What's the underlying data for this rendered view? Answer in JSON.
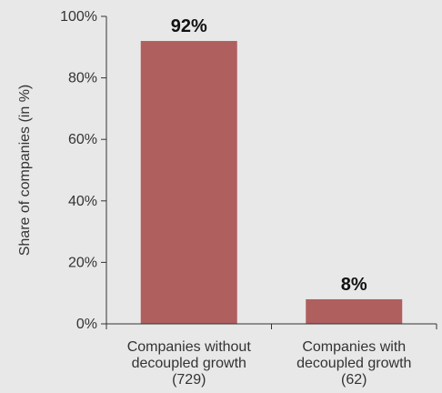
{
  "chart_data": {
    "type": "bar",
    "categories": [
      [
        "Companies without",
        "decoupled growth",
        "(729)"
      ],
      [
        "Companies with",
        "decoupled growth",
        "(62)"
      ]
    ],
    "values": [
      92,
      8
    ],
    "data_labels": [
      "92%",
      "8%"
    ],
    "ylabel": "Share of companies (in %)",
    "xlabel": "",
    "ylim": [
      0,
      100
    ],
    "yticks": [
      0,
      20,
      40,
      60,
      80,
      100
    ],
    "ytick_labels": [
      "0%",
      "20%",
      "40%",
      "60%",
      "80%",
      "100%"
    ],
    "grid": false,
    "legend": "none",
    "colors": {
      "bar": "#b05f5f",
      "background": "#e8e8e8",
      "axis": "#333333"
    }
  }
}
